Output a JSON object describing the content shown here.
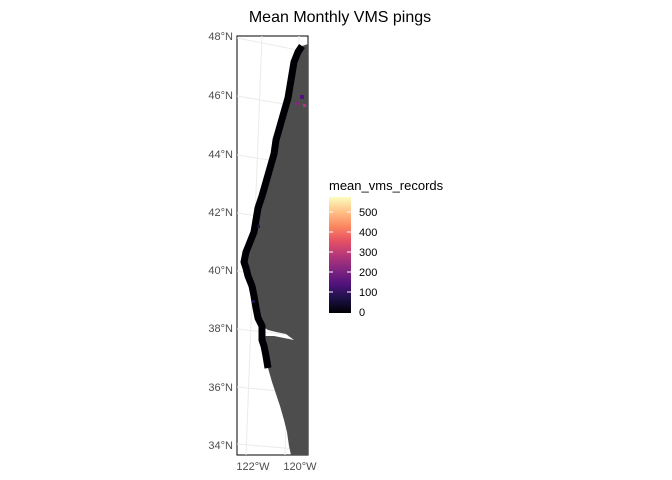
{
  "title": "Mean Monthly VMS pings",
  "y_axis": {
    "tick_labels": [
      "48°N",
      "46°N",
      "44°N",
      "42°N",
      "40°N",
      "38°N",
      "36°N",
      "34°N"
    ],
    "values": [
      48,
      46,
      44,
      42,
      40,
      38,
      36,
      34
    ]
  },
  "x_axis": {
    "tick_labels": [
      "122°W",
      "120°W"
    ],
    "values": [
      -122,
      -120
    ]
  },
  "legend": {
    "title": "mean_vms_records",
    "tick_labels": [
      "500",
      "400",
      "300",
      "200",
      "100",
      "0"
    ],
    "values": [
      500,
      400,
      300,
      200,
      100,
      0
    ],
    "range": [
      0,
      550
    ],
    "palette": "magma",
    "colors": [
      "#000004",
      "#1d1147",
      "#51127c",
      "#822681",
      "#b73779",
      "#e75263",
      "#fc8961",
      "#fec287",
      "#fcfdbf"
    ]
  },
  "colors": {
    "land": "#4d4d4d",
    "graticule": "#ebebeb",
    "low_pings": "#000004"
  },
  "chart_data": {
    "type": "heatmap",
    "title": "Mean Monthly VMS pings",
    "fill_variable": "mean_vms_records",
    "fill_range": [
      0,
      550
    ],
    "xlim": [
      -122.6,
      -120.6
    ],
    "ylim": [
      33.8,
      48.3
    ],
    "grid": true,
    "legend_position": "right",
    "note_values": "Most grid cells are near 0 (darkest color); a few cells near 46.5°N show higher values (purple)."
  }
}
